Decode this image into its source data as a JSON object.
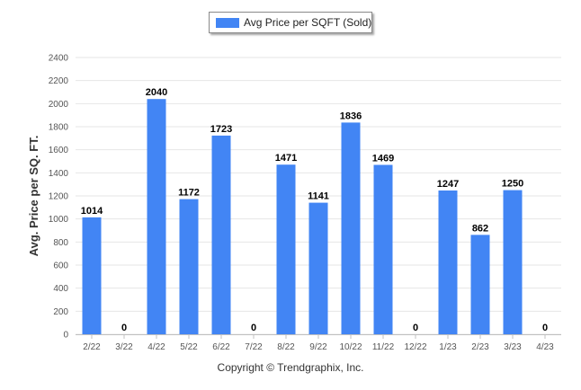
{
  "chart_data": {
    "type": "bar",
    "categories": [
      "2/22",
      "3/22",
      "4/22",
      "5/22",
      "6/22",
      "7/22",
      "8/22",
      "9/22",
      "10/22",
      "11/22",
      "12/22",
      "1/23",
      "2/23",
      "3/23",
      "4/23"
    ],
    "series": [
      {
        "name": "Avg Price per SQFT (Sold)",
        "values": [
          1014,
          0,
          2040,
          1172,
          1723,
          0,
          1471,
          1141,
          1836,
          1469,
          0,
          1247,
          862,
          1250,
          0
        ]
      }
    ],
    "ylabel": "Avg. Price per SQ. FT.",
    "xlabel": "",
    "ylim": [
      0,
      2400
    ],
    "yticks": [
      0,
      200,
      400,
      600,
      800,
      1000,
      1200,
      1400,
      1600,
      1800,
      2000,
      2200,
      2400
    ],
    "grid": true,
    "legend": "top-center",
    "bar_color": "#4285f4"
  },
  "footer": {
    "copyright": "Copyright © Trendgraphix, Inc."
  }
}
